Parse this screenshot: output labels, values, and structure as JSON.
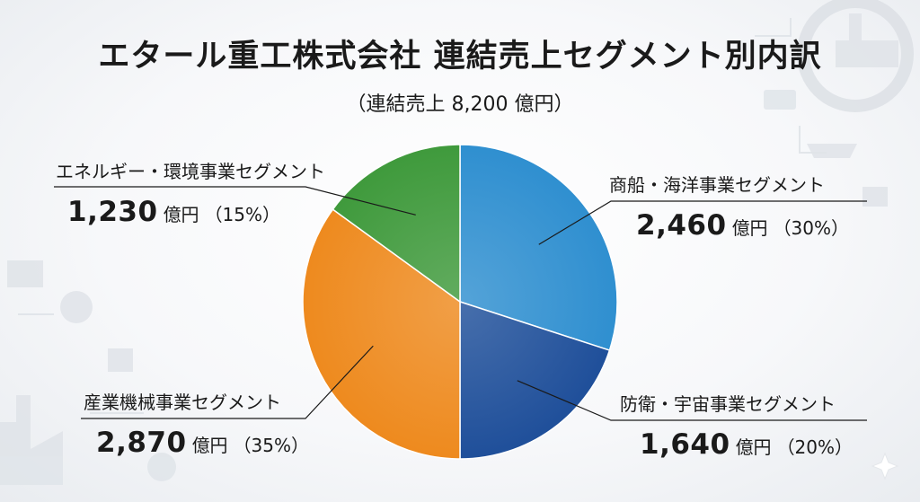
{
  "title": "エタール重工株式会社 連結売上セグメント別内訳",
  "subtitle": "（連結売上 8,200 億円）",
  "unit": "億円",
  "chart_data": {
    "type": "pie",
    "title": "エタール重工株式会社 連結売上セグメント別内訳",
    "subtitle": "（連結売上 8,200 億円）",
    "unit": "億円",
    "start_angle_deg": 0,
    "direction": "clockwise",
    "slices": [
      {
        "label": "商船・海洋事業セグメント",
        "value": 2460,
        "value_text": "2,460",
        "percent_text": "（30%）",
        "color": "#2f8fd0"
      },
      {
        "label": "防衛・宇宙事業セグメント",
        "value": 1640,
        "value_text": "1,640",
        "percent_text": "（20%）",
        "color": "#1f4f9a"
      },
      {
        "label": "産業機械事業セグメント",
        "value": 2870,
        "value_text": "2,870",
        "percent_text": "（35%）",
        "color": "#ee8a1e"
      },
      {
        "label": "エネルギー・環境事業セグメント",
        "value": 1230,
        "value_text": "1,230",
        "percent_text": "（15%）",
        "color": "#3f9a3c"
      }
    ]
  }
}
